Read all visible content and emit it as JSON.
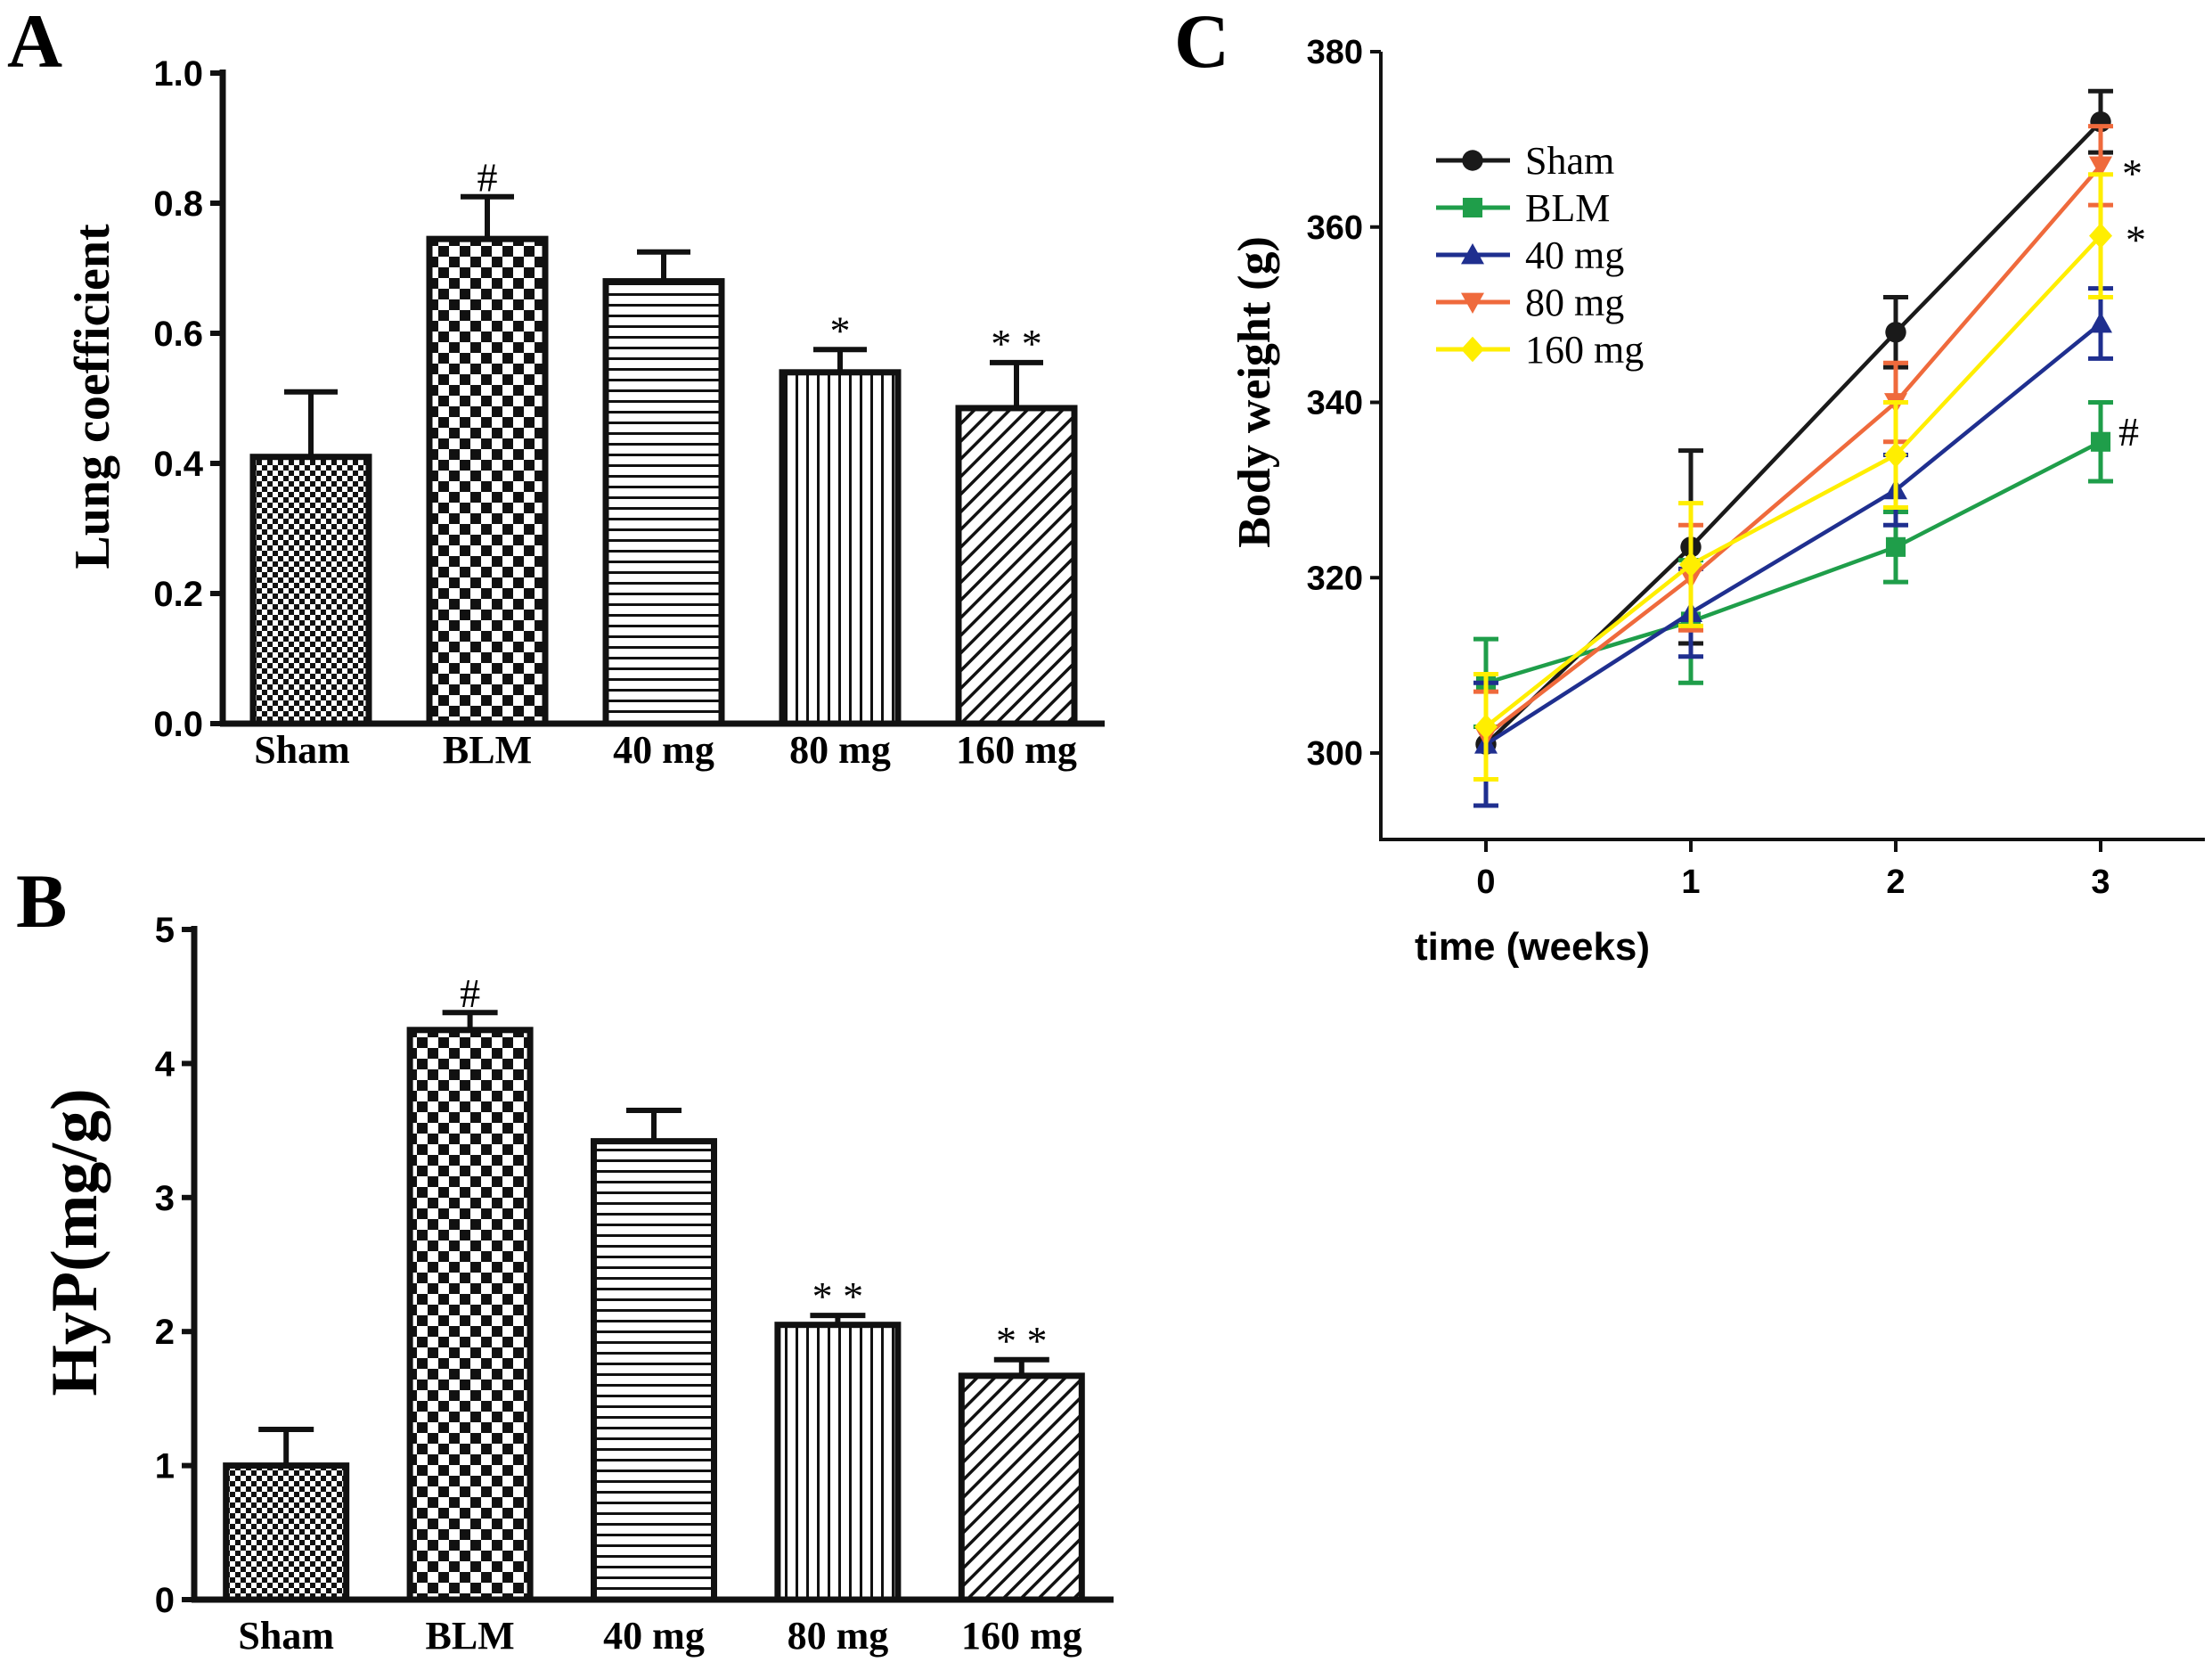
{
  "panels": {
    "a": "A",
    "b": "B",
    "c": "C"
  },
  "chart_data": [
    {
      "type": "bar",
      "panel": "A",
      "ylabel": "Lung coefficient",
      "ylim": [
        0,
        1.0
      ],
      "yticks": [
        "0.0",
        "0.2",
        "0.4",
        "0.6",
        "0.8",
        "1.0"
      ],
      "categories": [
        "Sham",
        "BLM",
        "40 mg",
        "80 mg",
        "160 mg"
      ],
      "values": [
        0.41,
        0.745,
        0.68,
        0.54,
        0.485
      ],
      "errors": [
        0.1,
        0.065,
        0.045,
        0.035,
        0.07
      ],
      "annotations": [
        "",
        "#",
        "",
        "*",
        "**"
      ],
      "patterns": [
        "fine-check",
        "coarse-check",
        "horizontal",
        "vertical",
        "diagonal"
      ]
    },
    {
      "type": "bar",
      "panel": "B",
      "ylabel": "HyP(mg/g)",
      "ylim": [
        0,
        5
      ],
      "yticks": [
        "0",
        "1",
        "2",
        "3",
        "4",
        "5"
      ],
      "categories": [
        "Sham",
        "BLM",
        "40 mg",
        "80 mg",
        "160 mg"
      ],
      "values": [
        1.0,
        4.25,
        3.42,
        2.05,
        1.67
      ],
      "errors": [
        0.27,
        0.13,
        0.23,
        0.07,
        0.12
      ],
      "annotations": [
        "",
        "#",
        "",
        "**",
        "**"
      ],
      "patterns": [
        "fine-check",
        "coarse-check",
        "horizontal",
        "vertical",
        "diagonal"
      ]
    },
    {
      "type": "line",
      "panel": "C",
      "xlabel": "time (weeks)",
      "ylabel": "Body weight (g)",
      "x": [
        0,
        1,
        2,
        3
      ],
      "xticks": [
        "0",
        "1",
        "2",
        "3"
      ],
      "ylim": [
        290,
        380
      ],
      "yticks": [
        "300",
        "320",
        "340",
        "360",
        "380"
      ],
      "series": [
        {
          "name": "Sham",
          "color": "#1a1a1a",
          "marker": "circle",
          "values": [
            301,
            323.5,
            348,
            372
          ],
          "errors": [
            0,
            11,
            4,
            3.5
          ],
          "annotation": ""
        },
        {
          "name": "BLM",
          "color": "#1f9e4a",
          "marker": "square",
          "values": [
            308,
            315,
            323.5,
            335.5
          ],
          "errors": [
            5,
            7,
            4,
            4.5
          ],
          "annotation": "#"
        },
        {
          "name": "40 mg",
          "color": "#1f2f8f",
          "marker": "triangle-up",
          "values": [
            301,
            316,
            330,
            349
          ],
          "errors": [
            7,
            5,
            4,
            4
          ],
          "annotation": ""
        },
        {
          "name": "80 mg",
          "color": "#ef6a3c",
          "marker": "triangle-down",
          "values": [
            302,
            320,
            340,
            367
          ],
          "errors": [
            5,
            6,
            4.5,
            4.5
          ],
          "annotation": "*"
        },
        {
          "name": "160 mg",
          "color": "#ffee00",
          "marker": "diamond",
          "values": [
            303,
            321.5,
            334,
            359
          ],
          "errors": [
            6,
            7,
            6,
            7
          ],
          "annotation": "*"
        }
      ]
    }
  ]
}
